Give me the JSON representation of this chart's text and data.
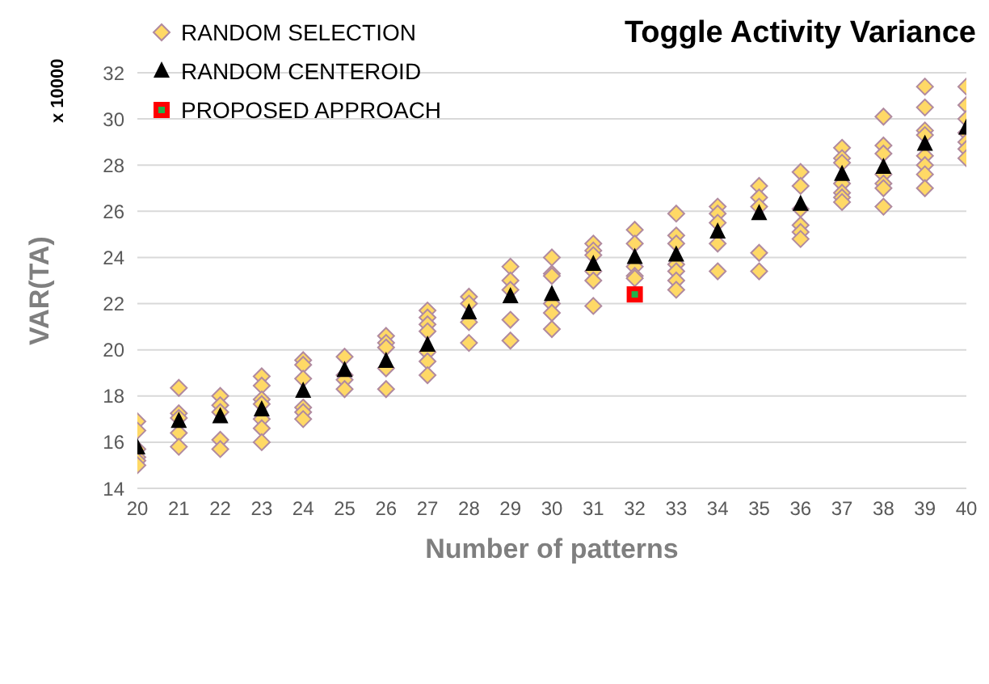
{
  "chart_data": {
    "type": "scatter",
    "title": "Toggle Activity Variance",
    "xlabel": "Number of patterns",
    "ylabel": "VAR(TA)",
    "annotations": [
      "x 10000"
    ],
    "xlim": [
      20,
      40
    ],
    "xticks": [
      20,
      21,
      22,
      23,
      24,
      25,
      26,
      27,
      28,
      29,
      30,
      31,
      32,
      33,
      34,
      35,
      36,
      37,
      38,
      39,
      40
    ],
    "ylim": [
      14,
      32
    ],
    "yticks": [
      14,
      16,
      18,
      20,
      22,
      24,
      26,
      28,
      30,
      32
    ],
    "grid": "y",
    "legend": "top left",
    "series": [
      {
        "name": "RANDOM SELECTION",
        "color": "#ffd966",
        "marker": "diamond",
        "x": [
          20,
          20,
          20,
          20,
          20,
          20,
          21,
          21,
          21,
          21,
          21,
          22,
          22,
          22,
          22,
          22,
          23,
          23,
          23,
          23,
          23,
          23,
          23,
          24,
          24,
          24,
          24,
          24,
          24,
          25,
          25,
          25,
          25,
          26,
          26,
          26,
          26,
          26,
          27,
          27,
          27,
          27,
          27,
          27,
          27,
          28,
          28,
          28,
          28,
          29,
          29,
          29,
          29,
          29,
          30,
          30,
          30,
          30,
          30,
          30,
          31,
          31,
          31,
          31,
          31,
          31,
          32,
          32,
          32,
          32,
          32,
          33,
          33,
          33,
          33,
          33,
          33,
          33,
          34,
          34,
          34,
          34,
          34,
          35,
          35,
          35,
          35,
          35,
          36,
          36,
          36,
          36,
          36,
          36,
          37,
          37,
          37,
          37,
          37,
          37,
          37,
          38,
          38,
          38,
          38,
          38,
          38,
          38,
          39,
          39,
          39,
          39,
          39,
          39,
          39,
          39,
          40,
          40,
          40,
          40,
          40,
          40,
          40
        ],
        "values": [
          16.9,
          16.5,
          15.7,
          15.35,
          15.2,
          15.0,
          18.35,
          17.25,
          17.05,
          16.4,
          15.8,
          18.0,
          17.6,
          17.3,
          16.1,
          15.7,
          18.85,
          18.45,
          17.85,
          17.65,
          17.0,
          16.6,
          16.0,
          19.55,
          19.35,
          18.75,
          17.5,
          17.3,
          17.0,
          19.7,
          18.9,
          18.7,
          18.3,
          20.6,
          20.3,
          20.1,
          19.2,
          18.3,
          21.7,
          21.4,
          21.1,
          20.8,
          19.9,
          19.5,
          18.9,
          22.3,
          22.0,
          21.2,
          20.3,
          23.6,
          23.0,
          22.6,
          21.3,
          20.4,
          24.0,
          23.3,
          23.2,
          22.0,
          21.6,
          20.9,
          24.6,
          24.3,
          24.1,
          23.4,
          23.0,
          21.9,
          25.2,
          24.6,
          23.6,
          23.2,
          23.1,
          25.9,
          24.95,
          24.6,
          23.7,
          23.4,
          23.0,
          22.6,
          26.2,
          25.9,
          25.5,
          24.6,
          23.4,
          27.1,
          26.6,
          26.2,
          24.2,
          23.4,
          27.7,
          27.1,
          26.1,
          25.4,
          25.1,
          24.8,
          28.75,
          28.3,
          28.1,
          27.2,
          26.8,
          26.6,
          26.4,
          30.1,
          28.85,
          28.5,
          27.6,
          27.2,
          27.0,
          26.2,
          31.4,
          30.5,
          29.5,
          29.3,
          28.4,
          28.0,
          27.6,
          27.0,
          31.4,
          30.6,
          30.0,
          29.4,
          29.0,
          28.7,
          28.3
        ]
      },
      {
        "name": "RANDOM CENTEROID",
        "color": "#000000",
        "marker": "triangle",
        "x": [
          20,
          21,
          22,
          23,
          24,
          25,
          26,
          27,
          28,
          29,
          30,
          31,
          32,
          33,
          34,
          35,
          36,
          37,
          38,
          39,
          40
        ],
        "values": [
          15.75,
          16.9,
          17.1,
          17.4,
          18.2,
          19.1,
          19.5,
          20.2,
          21.6,
          22.3,
          22.4,
          23.7,
          24.0,
          24.1,
          25.1,
          25.9,
          26.3,
          27.6,
          27.9,
          28.9,
          29.6
        ]
      },
      {
        "name": "PROPOSED APPROACH",
        "color": "#ff0000",
        "marker": "square",
        "x": [
          32
        ],
        "values": [
          22.4
        ]
      }
    ]
  }
}
